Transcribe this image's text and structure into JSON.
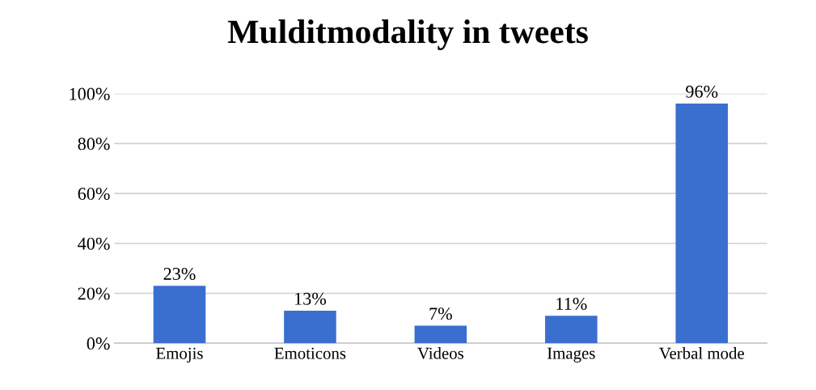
{
  "chart_data": {
    "type": "bar",
    "title": "Mulditmodality in tweets",
    "categories": [
      "Emojis",
      "Emoticons",
      "Videos",
      "Images",
      "Verbal mode"
    ],
    "values": [
      23,
      13,
      7,
      11,
      96
    ],
    "value_labels": [
      "23%",
      "13%",
      "7%",
      "11%",
      "96%"
    ],
    "color": "#3a6fd0",
    "ylim": [
      0,
      100
    ],
    "yticks": [
      {
        "value": 0,
        "label": "0%"
      },
      {
        "value": 20,
        "label": "20%"
      },
      {
        "value": 40,
        "label": "40%"
      },
      {
        "value": 60,
        "label": "60%"
      },
      {
        "value": 80,
        "label": "80%"
      },
      {
        "value": 100,
        "label": "100%"
      }
    ],
    "grid": "y"
  }
}
